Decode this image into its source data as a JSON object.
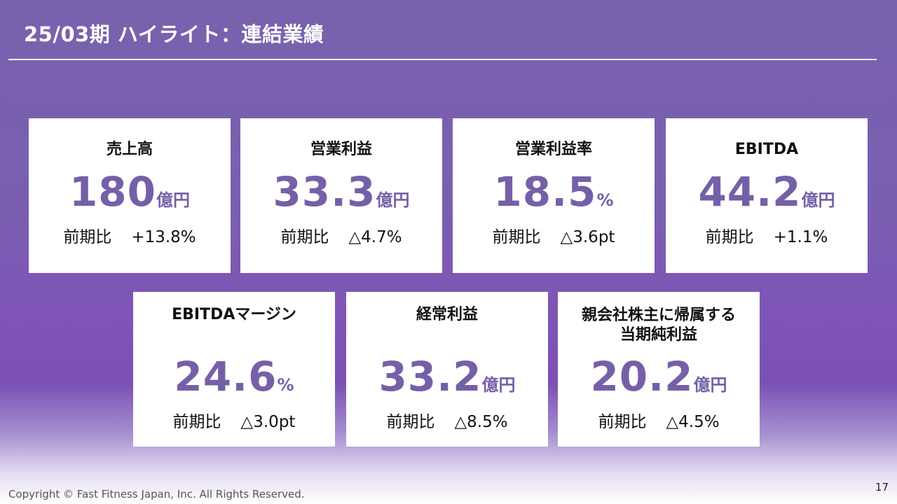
{
  "header": {
    "title": "25/03期 ハイライト：連結業績"
  },
  "cards": [
    {
      "label": "売上高",
      "value": "180",
      "unit": "億円",
      "compare_label": "前期比",
      "compare_value": "+13.8%"
    },
    {
      "label": "営業利益",
      "value": "33.3",
      "unit": "億円",
      "compare_label": "前期比",
      "compare_value": "△4.7%"
    },
    {
      "label": "営業利益率",
      "value": "18.5",
      "unit": "%",
      "compare_label": "前期比",
      "compare_value": "△3.6pt"
    },
    {
      "label": "EBITDA",
      "value": "44.2",
      "unit": "億円",
      "compare_label": "前期比",
      "compare_value": "+1.1%"
    },
    {
      "label": "EBITDAマージン",
      "value": "24.6",
      "unit": "%",
      "compare_label": "前期比",
      "compare_value": "△3.0pt"
    },
    {
      "label": "経常利益",
      "value": "33.2",
      "unit": "億円",
      "compare_label": "前期比",
      "compare_value": "△8.5%"
    },
    {
      "label_line1": "親会社株主に帰属する",
      "label_line2": "当期純利益",
      "value": "20.2",
      "unit": "億円",
      "compare_label": "前期比",
      "compare_value": "△4.5%"
    }
  ],
  "footer": {
    "copyright": "Copyright © Fast Fitness Japan, Inc. All Rights Reserved.",
    "page_number": "17"
  },
  "colors": {
    "accent_value": "#7560a8",
    "background_top": "#7862ae",
    "background_mid": "#7e55b6"
  }
}
